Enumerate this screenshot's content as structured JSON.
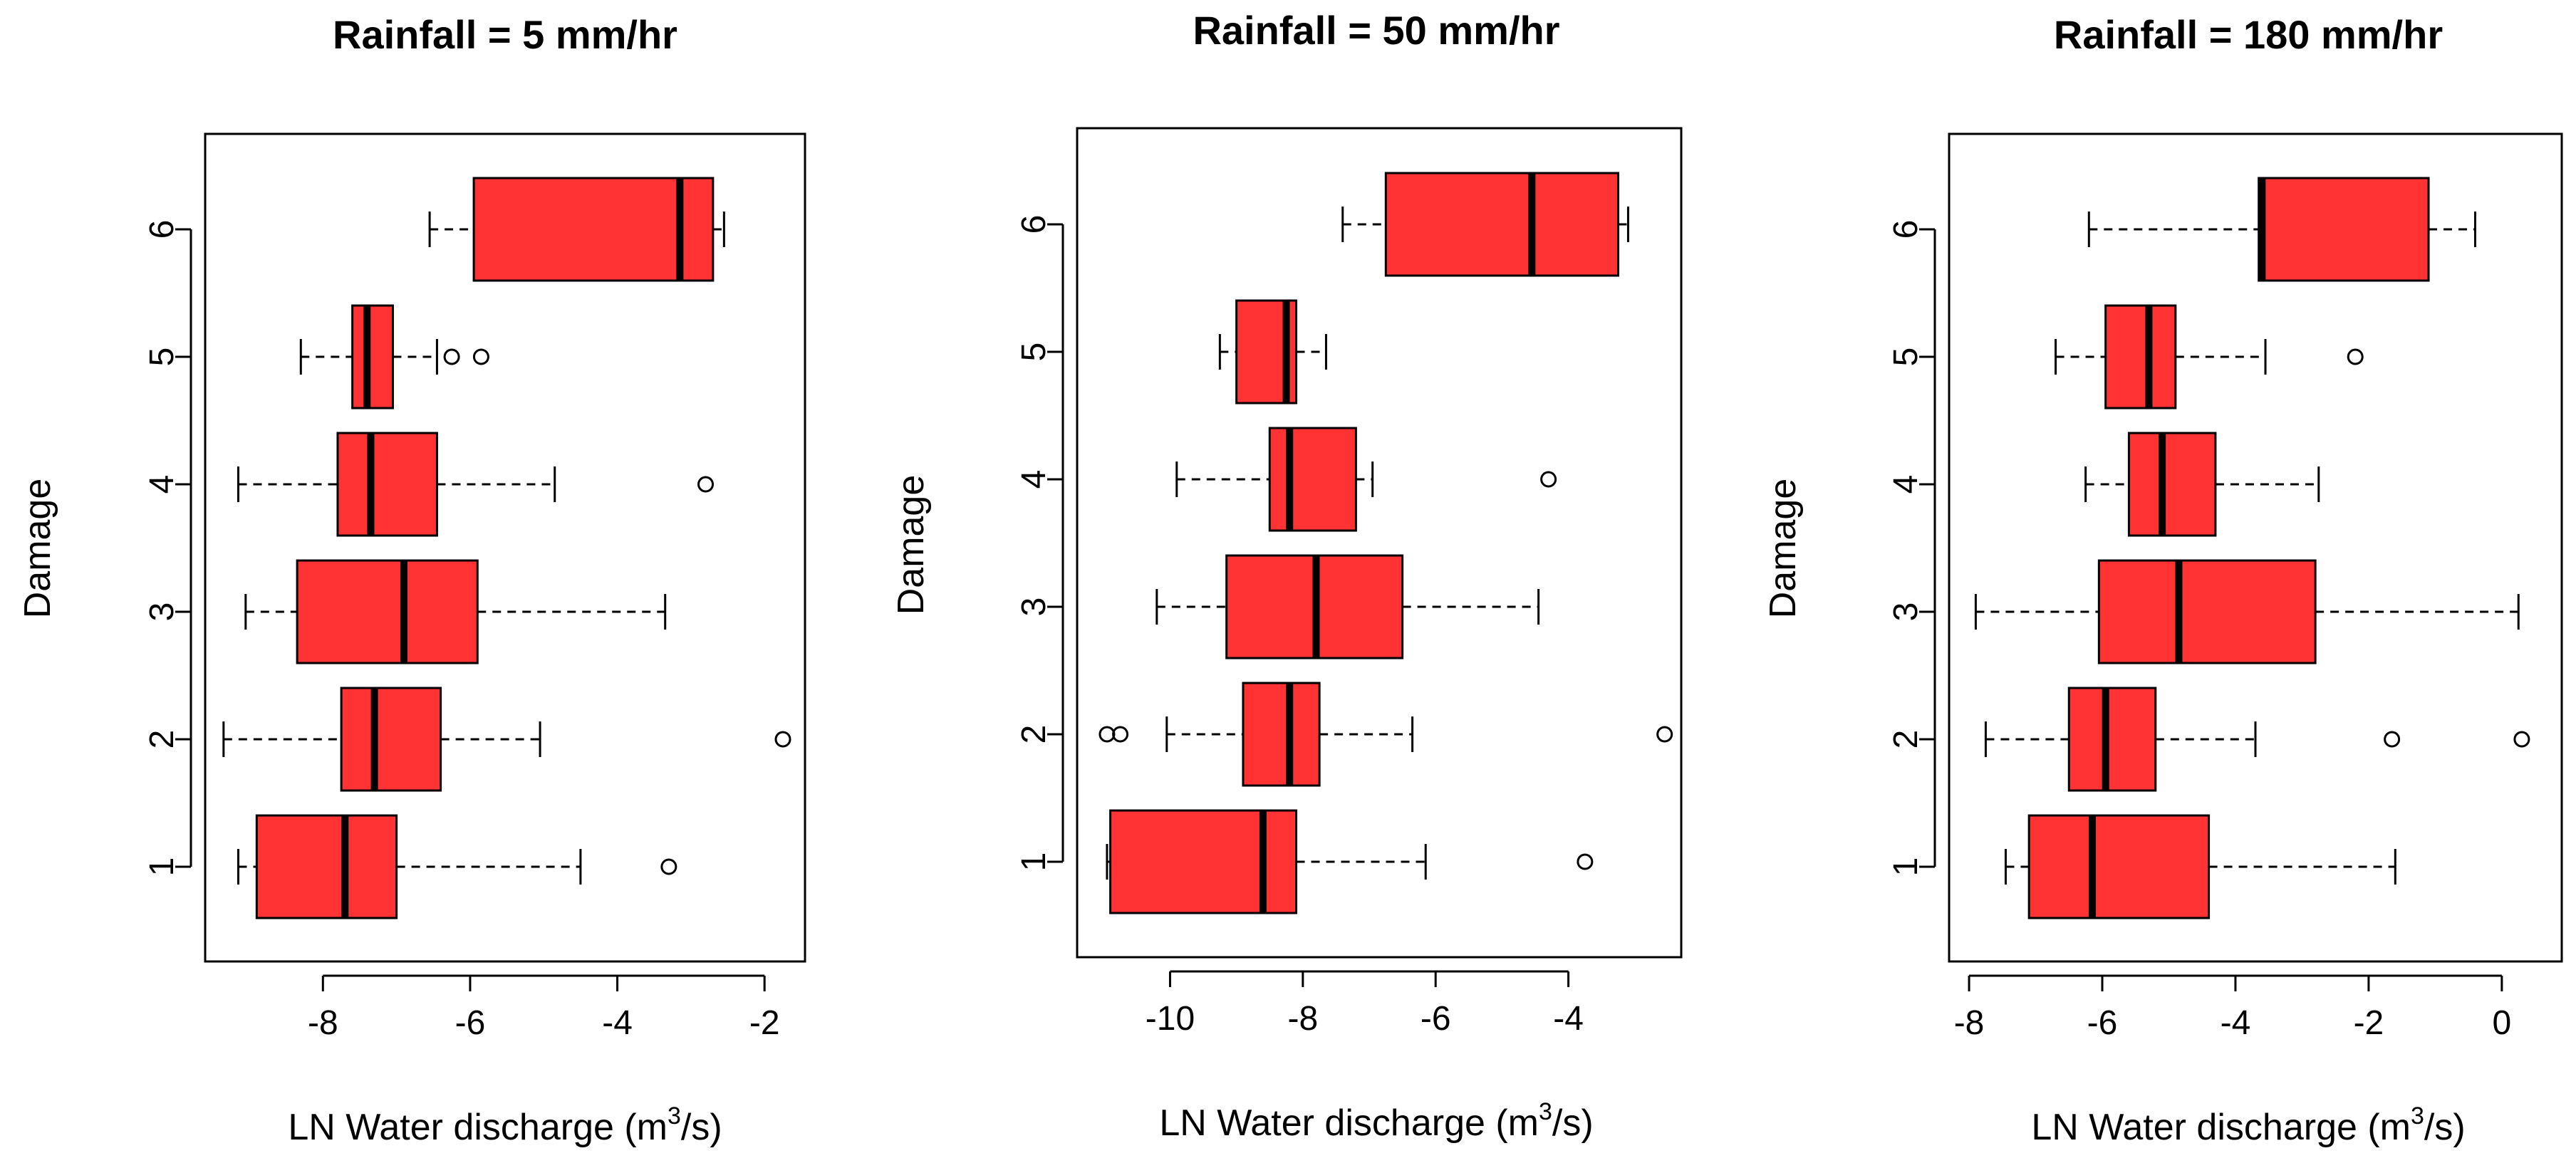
{
  "figure": {
    "box_color": "#ff3333",
    "panels": [
      {
        "title": "Rainfall = 5 mm/hr",
        "ylabel": "Damage",
        "xlabel_prefix": "LN Water discharge (m",
        "xlabel_sup": "3",
        "xlabel_suffix": "/s)"
      },
      {
        "title": "Rainfall = 50 mm/hr",
        "ylabel": "Damage",
        "xlabel_prefix": "LN Water discharge (m",
        "xlabel_sup": "3",
        "xlabel_suffix": "/s)"
      },
      {
        "title": "Rainfall = 180 mm/hr",
        "ylabel": "Damage",
        "xlabel_prefix": "LN Water discharge (m",
        "xlabel_sup": "3",
        "xlabel_suffix": "/s)"
      }
    ]
  },
  "chart_data": [
    {
      "type": "boxplot",
      "orientation": "horizontal",
      "title": "Rainfall = 5 mm/hr",
      "xlabel": "LN Water discharge (m3/s)",
      "ylabel": "Damage",
      "xlim": [
        -9.6,
        -1.45
      ],
      "xticks": [
        -8,
        -6,
        -4,
        -2
      ],
      "categories": [
        "1",
        "2",
        "3",
        "4",
        "5",
        "6"
      ],
      "boxes": [
        {
          "category": "1",
          "min": -9.15,
          "q1": -8.9,
          "median": -7.7,
          "q3": -7.0,
          "max": -4.5,
          "outliers": [
            -3.3
          ]
        },
        {
          "category": "2",
          "min": -9.35,
          "q1": -7.75,
          "median": -7.3,
          "q3": -6.4,
          "max": -5.05,
          "outliers": [
            -1.75
          ]
        },
        {
          "category": "3",
          "min": -9.05,
          "q1": -8.35,
          "median": -6.9,
          "q3": -5.9,
          "max": -3.35,
          "outliers": []
        },
        {
          "category": "4",
          "min": -9.15,
          "q1": -7.8,
          "median": -7.35,
          "q3": -6.45,
          "max": -4.85,
          "outliers": [
            -2.8
          ]
        },
        {
          "category": "5",
          "min": -8.3,
          "q1": -7.6,
          "median": -7.4,
          "q3": -7.05,
          "max": -6.45,
          "outliers": [
            -6.25,
            -5.85
          ]
        },
        {
          "category": "6",
          "min": -6.55,
          "q1": -5.95,
          "median": -3.15,
          "q3": -2.7,
          "max": -2.55,
          "outliers": []
        }
      ]
    },
    {
      "type": "boxplot",
      "orientation": "horizontal",
      "title": "Rainfall = 50 mm/hr",
      "xlabel": "LN Water discharge (m3/s)",
      "ylabel": "Damage",
      "xlim": [
        -11.4,
        -2.3
      ],
      "xticks": [
        -10,
        -8,
        -6,
        -4
      ],
      "categories": [
        "1",
        "2",
        "3",
        "4",
        "5",
        "6"
      ],
      "boxes": [
        {
          "category": "1",
          "min": -10.95,
          "q1": -10.9,
          "median": -8.6,
          "q3": -8.1,
          "max": -6.15,
          "outliers": [
            -3.75
          ]
        },
        {
          "category": "2",
          "min": -10.05,
          "q1": -8.9,
          "median": -8.2,
          "q3": -7.75,
          "max": -6.35,
          "outliers": [
            -10.95,
            -10.75,
            -2.55
          ]
        },
        {
          "category": "3",
          "min": -10.2,
          "q1": -9.15,
          "median": -7.8,
          "q3": -6.5,
          "max": -4.45,
          "outliers": []
        },
        {
          "category": "4",
          "min": -9.9,
          "q1": -8.5,
          "median": -8.2,
          "q3": -7.2,
          "max": -6.95,
          "outliers": [
            -4.3
          ]
        },
        {
          "category": "5",
          "min": -9.25,
          "q1": -9.0,
          "median": -8.25,
          "q3": -8.1,
          "max": -7.65,
          "outliers": []
        },
        {
          "category": "6",
          "min": -7.4,
          "q1": -6.75,
          "median": -4.55,
          "q3": -3.25,
          "max": -3.1,
          "outliers": []
        }
      ]
    },
    {
      "type": "boxplot",
      "orientation": "horizontal",
      "title": "Rainfall = 180 mm/hr",
      "xlabel": "LN Water discharge (m3/s)",
      "ylabel": "Damage",
      "xlim": [
        -8.3,
        0.9
      ],
      "xticks": [
        -8,
        -6,
        -4,
        -2,
        0
      ],
      "categories": [
        "1",
        "2",
        "3",
        "4",
        "5",
        "6"
      ],
      "boxes": [
        {
          "category": "1",
          "min": -7.45,
          "q1": -7.1,
          "median": -6.15,
          "q3": -4.4,
          "max": -1.6,
          "outliers": []
        },
        {
          "category": "2",
          "min": -7.75,
          "q1": -6.5,
          "median": -5.95,
          "q3": -5.2,
          "max": -3.7,
          "outliers": [
            -1.65,
            0.3
          ]
        },
        {
          "category": "3",
          "min": -7.9,
          "q1": -6.05,
          "median": -4.85,
          "q3": -2.8,
          "max": 0.25,
          "outliers": []
        },
        {
          "category": "4",
          "min": -6.25,
          "q1": -5.6,
          "median": -5.1,
          "q3": -4.3,
          "max": -2.75,
          "outliers": []
        },
        {
          "category": "5",
          "min": -6.7,
          "q1": -5.95,
          "median": -5.3,
          "q3": -4.9,
          "max": -3.55,
          "outliers": [
            -2.2
          ]
        },
        {
          "category": "6",
          "min": -6.2,
          "q1": -3.65,
          "median": -3.6,
          "q3": -1.1,
          "max": -0.4,
          "outliers": []
        }
      ]
    }
  ]
}
